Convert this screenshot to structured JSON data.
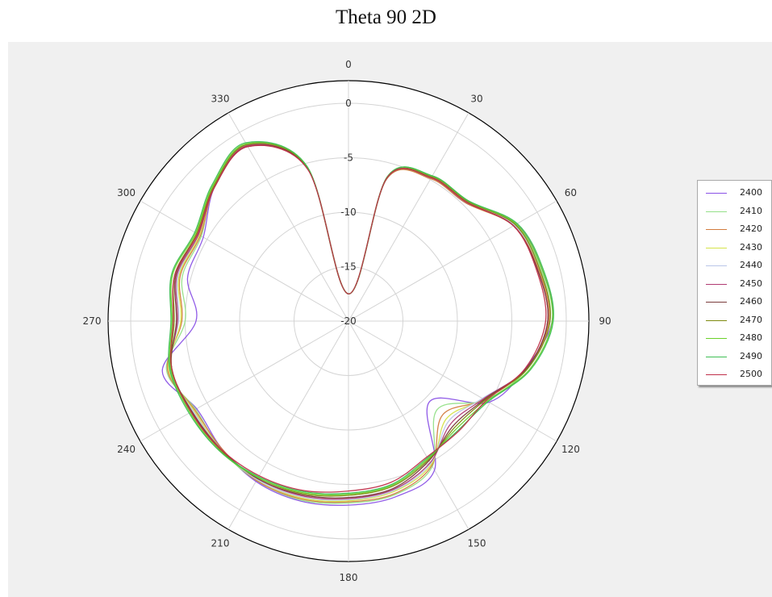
{
  "chart_data": {
    "type": "polar-line",
    "title": "Theta 90 2D",
    "angle_ticks": [
      "0",
      "30",
      "60",
      "90",
      "120",
      "150",
      "180",
      "210",
      "240",
      "270",
      "300",
      "330"
    ],
    "radial_ticks": [
      "0",
      "-5",
      "-10",
      "-15",
      "-20"
    ],
    "rlim": [
      -20,
      0
    ],
    "grid": true,
    "legend_position": "right",
    "theta_deg": [
      0,
      15,
      30,
      45,
      60,
      75,
      90,
      105,
      120,
      135,
      150,
      165,
      180,
      195,
      210,
      225,
      240,
      255,
      270,
      285,
      300,
      315,
      330,
      345
    ],
    "series": [
      {
        "name": "2400",
        "color": "#8a52e6",
        "values": [
          -17.5,
          -6.5,
          -4.8,
          -4.7,
          -2.2,
          -1.6,
          -1.3,
          -3.2,
          -5.1,
          -9.5,
          -4.2,
          -3.3,
          -3.1,
          -2.9,
          -3.0,
          -3.5,
          -3.9,
          -2.3,
          -6.0,
          -4.7,
          -4.6,
          -2.6,
          -1.3,
          -5.4
        ]
      },
      {
        "name": "2410",
        "color": "#95e089",
        "values": [
          -17.5,
          -6.5,
          -4.8,
          -4.6,
          -2.3,
          -1.7,
          -1.5,
          -3.0,
          -5.5,
          -8.5,
          -4.6,
          -3.5,
          -3.3,
          -3.0,
          -3.1,
          -3.4,
          -3.8,
          -2.7,
          -5.0,
          -4.2,
          -4.4,
          -2.5,
          -1.3,
          -5.4
        ]
      },
      {
        "name": "2420",
        "color": "#d27b3e",
        "values": [
          -17.5,
          -6.5,
          -4.9,
          -4.7,
          -2.5,
          -1.9,
          -1.6,
          -3.1,
          -5.6,
          -7.8,
          -4.7,
          -3.6,
          -3.4,
          -3.1,
          -3.1,
          -3.5,
          -3.7,
          -2.8,
          -4.7,
          -4.0,
          -4.3,
          -2.6,
          -1.4,
          -5.5
        ]
      },
      {
        "name": "2430",
        "color": "#d5e34a",
        "values": [
          -17.5,
          -6.4,
          -4.8,
          -4.6,
          -2.4,
          -1.8,
          -1.5,
          -3.0,
          -5.7,
          -7.3,
          -4.8,
          -3.8,
          -3.5,
          -3.2,
          -3.2,
          -3.4,
          -3.6,
          -2.9,
          -4.6,
          -3.9,
          -4.2,
          -2.5,
          -1.4,
          -5.4
        ]
      },
      {
        "name": "2440",
        "color": "#b9c6e8",
        "values": [
          -17.5,
          -6.4,
          -4.8,
          -4.6,
          -2.4,
          -1.8,
          -1.5,
          -3.0,
          -5.8,
          -7.0,
          -4.9,
          -3.9,
          -3.6,
          -3.3,
          -3.2,
          -3.4,
          -3.5,
          -3.0,
          -4.4,
          -3.8,
          -4.1,
          -2.5,
          -1.3,
          -5.4
        ]
      },
      {
        "name": "2450",
        "color": "#b03a72",
        "values": [
          -17.5,
          -6.4,
          -4.8,
          -4.6,
          -2.5,
          -2.0,
          -1.7,
          -3.1,
          -5.7,
          -6.7,
          -5.0,
          -4.0,
          -3.7,
          -3.4,
          -3.3,
          -3.4,
          -3.4,
          -3.1,
          -4.3,
          -3.7,
          -4.1,
          -2.6,
          -1.4,
          -5.5
        ]
      },
      {
        "name": "2460",
        "color": "#7a3b3b",
        "values": [
          -17.5,
          -6.4,
          -4.8,
          -4.6,
          -2.5,
          -2.0,
          -1.7,
          -3.1,
          -5.6,
          -6.4,
          -5.2,
          -4.1,
          -3.8,
          -3.5,
          -3.3,
          -3.4,
          -3.4,
          -3.2,
          -4.2,
          -3.6,
          -4.0,
          -2.6,
          -1.5,
          -5.5
        ]
      },
      {
        "name": "2470",
        "color": "#7e8a0f",
        "values": [
          -17.5,
          -6.4,
          -4.7,
          -4.5,
          -2.3,
          -1.8,
          -1.5,
          -3.0,
          -5.5,
          -6.2,
          -5.3,
          -4.3,
          -4.0,
          -3.6,
          -3.4,
          -3.3,
          -3.3,
          -3.2,
          -4.0,
          -3.5,
          -3.9,
          -2.5,
          -1.3,
          -5.4
        ]
      },
      {
        "name": "2480",
        "color": "#6bd12a",
        "values": [
          -17.5,
          -6.3,
          -4.6,
          -4.4,
          -2.2,
          -1.6,
          -1.3,
          -2.8,
          -5.3,
          -6.0,
          -5.4,
          -4.4,
          -4.1,
          -3.7,
          -3.4,
          -3.2,
          -3.2,
          -3.1,
          -3.8,
          -3.3,
          -3.8,
          -2.4,
          -1.2,
          -5.3
        ]
      },
      {
        "name": "2490",
        "color": "#3fbf55",
        "values": [
          -17.5,
          -6.3,
          -4.6,
          -4.4,
          -2.1,
          -1.5,
          -1.2,
          -2.7,
          -5.2,
          -5.8,
          -5.5,
          -4.5,
          -4.2,
          -3.8,
          -3.5,
          -3.2,
          -3.1,
          -3.0,
          -3.7,
          -3.2,
          -3.7,
          -2.3,
          -1.1,
          -5.3
        ]
      },
      {
        "name": "2500",
        "color": "#c0304a",
        "values": [
          -17.5,
          -6.4,
          -4.8,
          -4.6,
          -2.5,
          -2.1,
          -1.9,
          -3.2,
          -5.4,
          -5.7,
          -5.6,
          -4.7,
          -4.4,
          -3.9,
          -3.6,
          -3.4,
          -3.3,
          -3.2,
          -3.9,
          -3.5,
          -4.0,
          -2.6,
          -1.5,
          -5.6
        ]
      }
    ]
  }
}
